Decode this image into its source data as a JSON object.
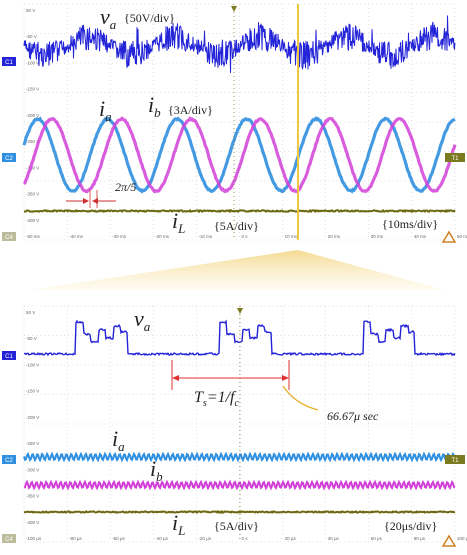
{
  "chart_data": [
    {
      "type": "line",
      "labels": {
        "va": "v",
        "va_sub": "a",
        "va_scale": "{50V/div}",
        "ia": "i",
        "ia_sub": "a",
        "ib": "i",
        "ib_sub": "b",
        "i_scale": "{3A/div}",
        "phase": "2π/5",
        "iL": "i",
        "iL_sub": "L",
        "iL_scale": "{5A/div}",
        "timebase": "{10ms/div}"
      },
      "channel_markers": [
        "C1",
        "C2",
        "C4"
      ],
      "trigger_marker": "T1",
      "y_ticks": [
        "50 V",
        "-50 V",
        "-100 V",
        "-150 V",
        "-200 V",
        "-250 V",
        "-300 V",
        "-350 V",
        "-400 V"
      ],
      "x_ticks": [
        "-50 ms",
        "-40 ms",
        "-30 ms",
        "-20 ms",
        "-10 ms",
        "0 s",
        "10 ms",
        "20 ms",
        "30 ms",
        "40 ms",
        "50 ms"
      ],
      "x_range_ms": [
        -50,
        50
      ],
      "voltage_fundamental_cycles": 5,
      "current_cycles": 6.2,
      "phase_shift": "2π/5",
      "colors": {
        "va": "#2323d8",
        "ia": "#2f8fe0",
        "ib": "#d23fd8",
        "iL": "#6b6a10",
        "trigger": "#e8c238"
      }
    },
    {
      "type": "line",
      "labels": {
        "va": "v",
        "va_sub": "a",
        "ts": "T",
        "ts_sub": "s",
        "ts_rest": "=1/f",
        "fc_sub": "c",
        "ts_value": "66.67μ sec",
        "ia": "i",
        "ia_sub": "a",
        "ib": "i",
        "ib_sub": "b",
        "iL": "i",
        "iL_sub": "L",
        "iL_scale": "{5A/div}",
        "timebase": "{20μs/div}"
      },
      "channel_markers": [
        "C1",
        "C2",
        "C4"
      ],
      "trigger_marker": "T1",
      "y_ticks": [
        "50 V",
        "-50 V",
        "-100 V",
        "-150 V",
        "-200 V",
        "-250 V",
        "-300 V",
        "-350 V",
        "-400 V"
      ],
      "x_ticks": [
        "-100 μs",
        "-80 μs",
        "-60 μs",
        "-40 μs",
        "-20 μs",
        "0 s",
        "20 μs",
        "40 μs",
        "60 μs",
        "80 μs",
        "100 μs"
      ],
      "x_range_us": [
        -100,
        100
      ],
      "switching_period_us": 66.67,
      "colors": {
        "va": "#2323d8",
        "ia": "#2f8fe0",
        "ib": "#d23fd8",
        "iL": "#6b6a10",
        "arrow": "#e03030",
        "leader": "#e8b030"
      }
    }
  ]
}
